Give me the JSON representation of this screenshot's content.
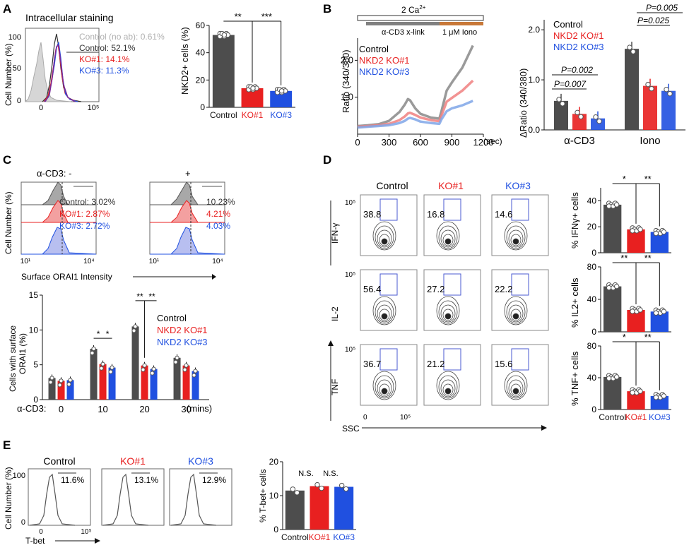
{
  "colors": {
    "control": "#4d4d4d",
    "ko1": "#e82020",
    "ko3": "#2050e0",
    "noab": "#b0b0b0",
    "purple": "#7a2a9a",
    "orange": "#c87838"
  },
  "panel_labels": [
    "A",
    "B",
    "C",
    "D",
    "E"
  ],
  "groups": {
    "control": "Control",
    "ko1": "KO#1",
    "ko3": "KO#3",
    "nkd2_ko1": "NKD2 KO#1",
    "nkd2_ko3": "NKD2 KO#3"
  },
  "panelA": {
    "title": "Intracellular staining",
    "ylabel": "Cell Number (%)",
    "yticks": [
      "100",
      "50",
      "0"
    ],
    "xticks": [
      "0",
      "10⁵"
    ],
    "legend": [
      {
        "text": "Control (no ab): 0.61%",
        "color": "#b0b0b0"
      },
      {
        "text": "Control: 52.1%",
        "color": "#333333"
      },
      {
        "text": "KO#1: 14.1%",
        "color": "#e82020"
      },
      {
        "text": "KO#3: 11.3%",
        "color": "#2050e0"
      }
    ]
  },
  "panelB": {
    "ca_label": "2  Ca",
    "ca_sup": "2+",
    "xlink_label": "α-CD3 x-link",
    "iono_label": "1 μM Iono",
    "ylabel": "Ratio (340/380)",
    "xunit": "(sec)",
    "bar_ylabel": "ΔRatio (340/380)",
    "pvalues": [
      "P=0.002",
      "P=0.007",
      "P=0.005",
      "P=0.025"
    ]
  },
  "panelC": {
    "cd3_minus": "α-CD3: -",
    "cd3_plus": "+",
    "hist_ylabel": "Cell Number (%)",
    "hist_xlabel": "Surface ORAI1 Intensity",
    "xticks": [
      "10¹",
      "10⁴"
    ],
    "stats_minus": [
      "Control: 3.02%",
      "KO#1: 2.87%",
      "KO#3: 2.72%"
    ],
    "stats_plus": [
      "10.23%",
      "4.21%",
      "4.03%"
    ],
    "bar_ylabel_1": "Cells with surface",
    "bar_ylabel_2": "ORAI1 (%)",
    "bar_xprefix": "α-CD3:",
    "bar_xunit": "(mins)"
  },
  "panelD": {
    "cols": [
      "Control",
      "KO#1",
      "KO#3"
    ],
    "rows": [
      {
        "marker": "IFN-γ",
        "values": [
          "38.8",
          "16.8",
          "14.6"
        ],
        "ytick": "10⁵"
      },
      {
        "marker": "IL-2",
        "values": [
          "56.4",
          "27.2",
          "22.2"
        ],
        "ytick": "10⁵"
      },
      {
        "marker": "TNF",
        "values": [
          "36.7",
          "21.2",
          "15.6"
        ],
        "ytick": "10⁵"
      }
    ],
    "xlabel": "SSC",
    "xticks": [
      "0",
      "10⁵"
    ],
    "bar_ylabels": [
      "% IFNγ+ cells",
      "% IL2+ cells",
      "% TNF+ cells"
    ]
  },
  "panelE": {
    "ylabel": "Cell Number (%)",
    "xlabel": "T-bet",
    "yticks": [
      "100",
      "0"
    ],
    "xticks": [
      "0",
      "10⁵"
    ],
    "percents": [
      "11.6%",
      "13.1%",
      "12.9%"
    ],
    "bar_ylabel": "% T-bet+ cells",
    "ns": "N.S."
  },
  "chart_data": [
    {
      "type": "bar",
      "panel": "A",
      "categories": [
        "Control",
        "KO#1",
        "KO#3"
      ],
      "values": [
        53,
        14,
        12
      ],
      "ylabel": "NKD2+ cells (%)",
      "yticks": [
        0,
        20,
        40,
        60
      ],
      "ylim": [
        0,
        60
      ],
      "significance": [
        "**",
        "***"
      ]
    },
    {
      "type": "line",
      "panel": "B",
      "x": [
        0,
        100,
        200,
        300,
        400,
        450,
        480,
        500,
        550,
        600,
        700,
        780,
        800,
        850,
        900,
        1000,
        1100
      ],
      "series": [
        {
          "name": "Control",
          "values": [
            0.22,
            0.24,
            0.27,
            0.36,
            0.6,
            0.8,
            0.95,
            0.92,
            0.7,
            0.55,
            0.45,
            0.42,
            0.62,
            1.18,
            1.4,
            1.8,
            2.4
          ]
        },
        {
          "name": "NKD2 KO#1",
          "values": [
            0.2,
            0.22,
            0.24,
            0.28,
            0.38,
            0.48,
            0.56,
            0.58,
            0.52,
            0.45,
            0.38,
            0.35,
            0.5,
            0.88,
            0.98,
            1.18,
            1.45
          ]
        },
        {
          "name": "NKD2 KO#3",
          "values": [
            0.18,
            0.2,
            0.22,
            0.24,
            0.3,
            0.36,
            0.42,
            0.44,
            0.4,
            0.34,
            0.3,
            0.28,
            0.4,
            0.62,
            0.7,
            0.78,
            0.9
          ]
        }
      ],
      "ylabel": "Ratio (340/380)",
      "xticks": [
        0,
        300,
        600,
        900,
        1200
      ],
      "yticks": [
        1.0,
        2.0
      ],
      "ylim": [
        0,
        2.6
      ],
      "xlim": [
        0,
        1200
      ]
    },
    {
      "type": "bar",
      "panel": "B",
      "categories": [
        "α-CD3",
        "Iono"
      ],
      "series": [
        {
          "name": "Control",
          "values": [
            0.58,
            1.62
          ]
        },
        {
          "name": "NKD2 KO#1",
          "values": [
            0.32,
            0.88
          ]
        },
        {
          "name": "NKD2 KO#3",
          "values": [
            0.23,
            0.78
          ]
        }
      ],
      "ylabel": "ΔRatio (340/380)",
      "yticks": [
        0.0,
        1.0,
        2.0
      ],
      "ylim": [
        0,
        2.2
      ]
    },
    {
      "type": "bar",
      "panel": "C",
      "categories": [
        "0",
        "10",
        "20",
        "30"
      ],
      "series": [
        {
          "name": "Control",
          "values": [
            3.1,
            7.3,
            10.5,
            6.0
          ]
        },
        {
          "name": "NKD2 KO#1",
          "values": [
            2.7,
            5.1,
            4.9,
            4.9
          ]
        },
        {
          "name": "NKD2 KO#3",
          "values": [
            2.8,
            4.6,
            4.4,
            4.1
          ]
        }
      ],
      "ylabel": "Cells with surface ORAI1 (%)",
      "yticks": [
        0,
        5,
        10,
        15
      ],
      "ylim": [
        0,
        15
      ],
      "significance": [
        "*",
        "*",
        "**",
        "**"
      ]
    },
    {
      "type": "bar",
      "panel": "D",
      "categories": [
        "Control",
        "KO#1",
        "KO#3"
      ],
      "values": [
        37,
        18,
        16
      ],
      "ylabel": "% IFNγ+ cells",
      "yticks": [
        0,
        20,
        40
      ],
      "ylim": [
        0,
        50
      ],
      "significance": [
        "*",
        "**"
      ]
    },
    {
      "type": "bar",
      "panel": "D",
      "categories": [
        "Control",
        "KO#1",
        "KO#3"
      ],
      "values": [
        56,
        27,
        25
      ],
      "ylabel": "% IL2+ cells",
      "yticks": [
        0,
        40,
        80
      ],
      "ylim": [
        0,
        80
      ],
      "significance": [
        "**",
        "**"
      ]
    },
    {
      "type": "bar",
      "panel": "D",
      "categories": [
        "Control",
        "KO#1",
        "KO#3"
      ],
      "values": [
        41,
        23,
        17
      ],
      "ylabel": "% TNF+ cells",
      "yticks": [
        0,
        40,
        80
      ],
      "ylim": [
        0,
        80
      ],
      "significance": [
        "*",
        "**"
      ]
    },
    {
      "type": "bar",
      "panel": "E",
      "categories": [
        "Control",
        "KO#1",
        "KO#3"
      ],
      "values": [
        11.5,
        12.8,
        12.6
      ],
      "ylabel": "% T-bet+ cells",
      "yticks": [
        0,
        10,
        20
      ],
      "ylim": [
        0,
        20
      ],
      "annotations": [
        "N.S.",
        "N.S."
      ]
    }
  ]
}
